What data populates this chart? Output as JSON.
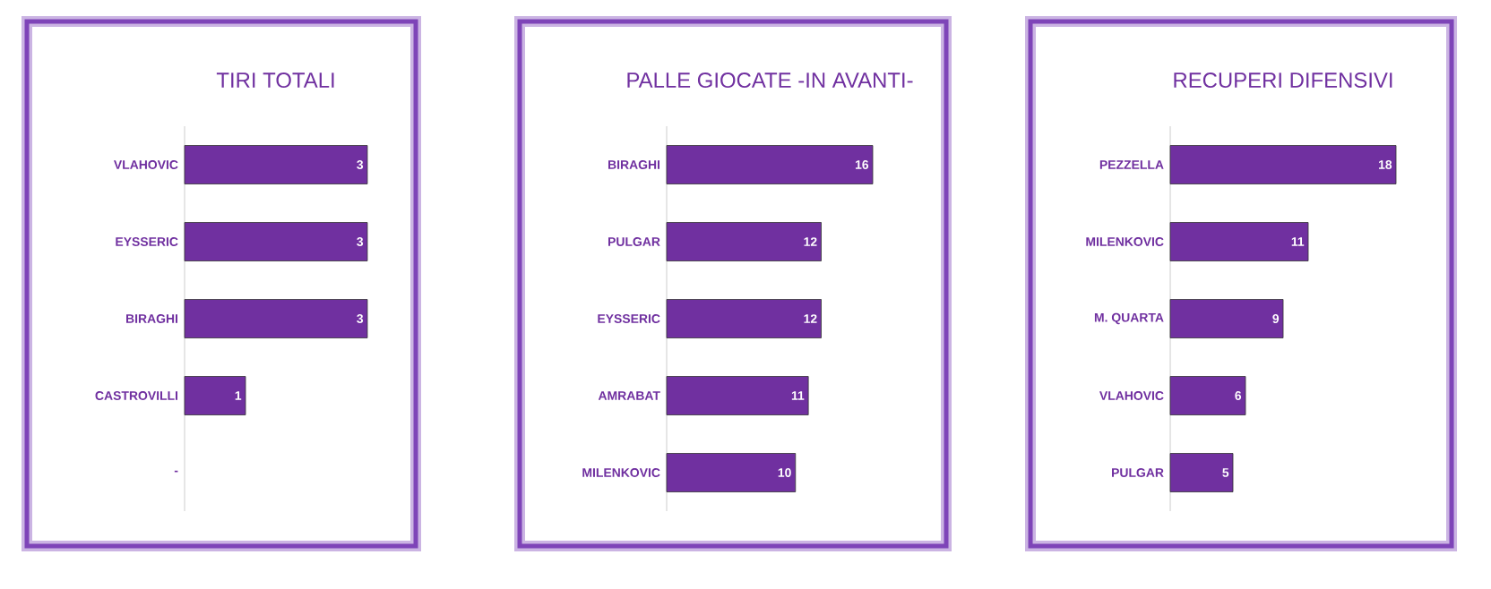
{
  "chart_data": [
    {
      "type": "bar",
      "orientation": "horizontal",
      "title": "TIRI TOTALI",
      "categories": [
        "VLAHOVIC",
        "EYSSERIC",
        "BIRAGHI",
        "CASTROVILLI",
        "-"
      ],
      "values": [
        3,
        3,
        3,
        1,
        null
      ],
      "color": "#7030a0",
      "tick_labels": "y",
      "data_labels": true
    },
    {
      "type": "bar",
      "orientation": "horizontal",
      "title": "PALLE GIOCATE -IN AVANTI-",
      "categories": [
        "BIRAGHI",
        "PULGAR",
        "EYSSERIC",
        "AMRABAT",
        "MILENKOVIC"
      ],
      "values": [
        16,
        12,
        12,
        11,
        10
      ],
      "color": "#7030a0",
      "tick_labels": "y",
      "data_labels": true
    },
    {
      "type": "bar",
      "orientation": "horizontal",
      "title": "RECUPERI DIFENSIVI",
      "categories": [
        "PEZZELLA",
        "MILENKOVIC",
        "M. QUARTA",
        "VLAHOVIC",
        "PULGAR"
      ],
      "values": [
        18,
        11,
        9,
        6,
        5
      ],
      "color": "#7030a0",
      "tick_labels": "y",
      "data_labels": true
    }
  ]
}
